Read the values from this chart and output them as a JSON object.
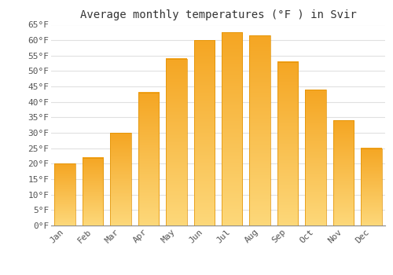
{
  "title": "Average monthly temperatures (°F ) in Svir",
  "months": [
    "Jan",
    "Feb",
    "Mar",
    "Apr",
    "May",
    "Jun",
    "Jul",
    "Aug",
    "Sep",
    "Oct",
    "Nov",
    "Dec"
  ],
  "values": [
    20,
    22,
    30,
    43,
    54,
    60,
    62.5,
    61.5,
    53,
    44,
    34,
    25
  ],
  "bar_color_top": "#F5A623",
  "bar_color_bottom": "#FDD87A",
  "bar_edge_color": "#E09000",
  "ylim": [
    0,
    65
  ],
  "yticks": [
    0,
    5,
    10,
    15,
    20,
    25,
    30,
    35,
    40,
    45,
    50,
    55,
    60,
    65
  ],
  "background_color": "#ffffff",
  "grid_color": "#e0e0e0",
  "title_fontsize": 10,
  "tick_fontsize": 8,
  "tick_color": "#555555",
  "font_family": "monospace"
}
